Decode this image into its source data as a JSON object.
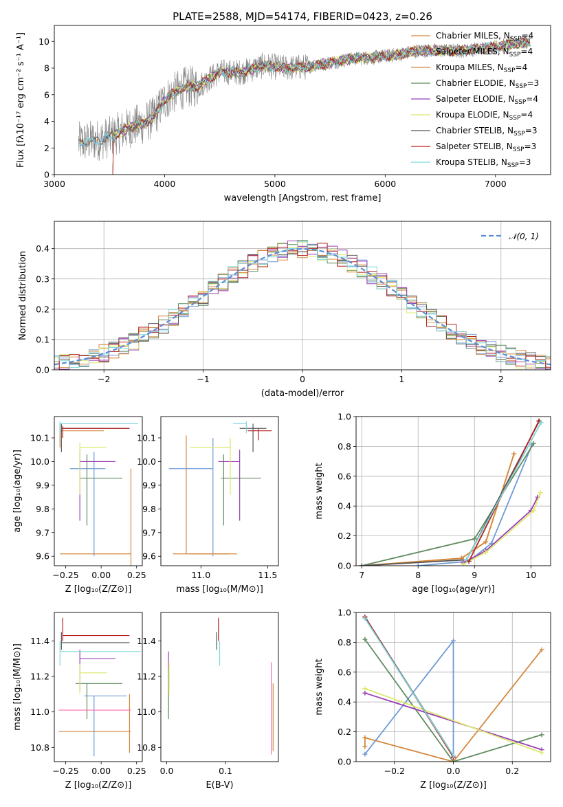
{
  "figure_title": "PLATE=2588, MJD=54174, FIBERID=0423, z=0.26",
  "series_colors": [
    "#d4873d",
    "#6f9ad6",
    "#d4873d",
    "#5e8b5e",
    "#9b3fb5",
    "#dde86a",
    "#555555",
    "#b52020",
    "#7fd6d9"
  ],
  "chart_data": [
    {
      "id": "spectrum",
      "type": "line",
      "xlabel": "wavelength [Angstrom, rest frame]",
      "ylabel": "Flux [fλ10⁻¹⁷ erg cm⁻² s⁻¹ A⁻¹]",
      "xlim": [
        3000,
        7500
      ],
      "ylim": [
        0,
        11.2
      ],
      "xticks": [
        "3000",
        "4000",
        "5000",
        "6000",
        "7000"
      ],
      "yticks": [
        "0",
        "2",
        "4",
        "6",
        "8",
        "10"
      ],
      "data_line_color": "#808080",
      "data_start": 3220,
      "data_end": 7320,
      "model_continuum": {
        "x": [
          3220,
          3300,
          3400,
          3500,
          3600,
          3700,
          3800,
          3900,
          4000,
          4100,
          4200,
          4300,
          4400,
          4500,
          4700,
          4900,
          5100,
          5300,
          5500,
          5700,
          5900,
          6100,
          6300,
          6500,
          6700,
          7000,
          7320
        ],
        "y": [
          2.4,
          2.5,
          2.6,
          2.8,
          3.2,
          3.6,
          3.8,
          4.3,
          5.6,
          6.2,
          6.6,
          6.6,
          7.2,
          7.7,
          7.7,
          8.2,
          8.0,
          8.1,
          8.4,
          8.7,
          8.8,
          9.0,
          9.3,
          9.3,
          9.3,
          9.6,
          10.0
        ]
      },
      "legend": [
        "Chabrier MILES, N_SSP=4",
        "Salpeter MILES, N_SSP=4",
        "Kroupa MILES, N_SSP=4",
        "Chabrier ELODIE, N_SSP=3",
        "Salpeter ELODIE, N_SSP=4",
        "Kroupa ELODIE, N_SSP=4",
        "Chabrier STELIB, N_SSP=3",
        "Salpeter STELIB, N_SSP=3",
        "Kroupa STELIB, N_SSP=3"
      ],
      "legend_placement": "upper-right"
    },
    {
      "id": "residuals",
      "type": "step",
      "xlabel": "(data-model)/error",
      "ylabel": "Normed distribution",
      "xlim": [
        -2.5,
        2.5
      ],
      "ylim": [
        0,
        0.49
      ],
      "xticks": [
        "−2",
        "−1",
        "0",
        "1",
        "2"
      ],
      "yticks": [
        "0.0",
        "0.1",
        "0.2",
        "0.3",
        "0.4"
      ],
      "grid": true,
      "legend": "𝒩(0, 1)",
      "legend_placement": "upper-right"
    },
    {
      "id": "age-vs-Z",
      "type": "errorbar",
      "xlabel": "Z [log₁₀(Z/Z⊙)]",
      "ylabel": "age  [log₁₀(age/yr)]",
      "xlim": [
        -0.33,
        0.29
      ],
      "ylim": [
        9.56,
        10.19
      ],
      "xticks": [
        "−0.25",
        "0.00",
        "0.25"
      ],
      "yticks": [
        "9.6",
        "9.7",
        "9.8",
        "9.9",
        "10.0",
        "10.1"
      ],
      "points": [
        {
          "x": -0.29,
          "y": 10.13,
          "xerr": [
            0.0,
            0.31
          ],
          "yerr": [
            0.07,
            0.03
          ],
          "color": "#d4873d"
        },
        {
          "x": -0.05,
          "y": 9.97,
          "xerr": [
            0.17,
            0.08
          ],
          "yerr": [
            0.37,
            0.07
          ],
          "color": "#6f9ad6"
        },
        {
          "x": 0.21,
          "y": 9.61,
          "xerr": [
            0.5,
            0.0
          ],
          "yerr": [
            0.05,
            0.36
          ],
          "color": "#d4873d"
        },
        {
          "x": -0.1,
          "y": 9.93,
          "xerr": [
            0.05,
            0.25
          ],
          "yerr": [
            0.2,
            0.1
          ],
          "color": "#5e8b5e"
        },
        {
          "x": -0.15,
          "y": 10.0,
          "xerr": [
            0.0,
            0.25
          ],
          "yerr": [
            0.25,
            0.05
          ],
          "color": "#9b3fb5"
        },
        {
          "x": -0.15,
          "y": 10.06,
          "xerr": [
            0.0,
            0.19
          ],
          "yerr": [
            0.2,
            0.02
          ],
          "color": "#dde86a"
        },
        {
          "x": -0.28,
          "y": 10.14,
          "xerr": [
            0.0,
            0.48
          ],
          "yerr": [
            0.1,
            0.02
          ],
          "color": "#555555"
        },
        {
          "x": -0.27,
          "y": 10.14,
          "xerr": [
            0.0,
            0.47
          ],
          "yerr": [
            0.04,
            0.01
          ],
          "color": "#b52020"
        },
        {
          "x": -0.29,
          "y": 10.16,
          "xerr": [
            0.0,
            0.55
          ],
          "yerr": [
            0.04,
            0.01
          ],
          "color": "#7fd6d9"
        }
      ]
    },
    {
      "id": "age-vs-mass",
      "type": "errorbar",
      "xlabel": "mass [log₁₀(M/M⊙)]",
      "ylabel": "",
      "xlim": [
        10.7,
        11.58
      ],
      "ylim": [
        9.56,
        10.19
      ],
      "xticks": [
        "11.0",
        "11.5"
      ],
      "yticks": [
        "9.6",
        "9.7",
        "9.8",
        "9.9",
        "10.0",
        "10.1"
      ],
      "points": [
        {
          "x": 10.89,
          "y": 9.61,
          "xerr": [
            0.1,
            0.32
          ],
          "yerr": [
            0.0,
            0.5
          ],
          "color": "#d4873d"
        },
        {
          "x": 11.09,
          "y": 9.97,
          "xerr": [
            0.33,
            0.0
          ],
          "yerr": [
            0.37,
            0.13
          ],
          "color": "#6f9ad6"
        },
        {
          "x": 11.17,
          "y": 9.93,
          "xerr": [
            0.02,
            0.28
          ],
          "yerr": [
            0.2,
            0.1
          ],
          "color": "#5e8b5e"
        },
        {
          "x": 11.29,
          "y": 10.0,
          "xerr": [
            0.16,
            0.0
          ],
          "yerr": [
            0.25,
            0.05
          ],
          "color": "#9b3fb5"
        },
        {
          "x": 11.22,
          "y": 10.06,
          "xerr": [
            0.3,
            0.0
          ],
          "yerr": [
            0.2,
            0.04
          ],
          "color": "#dde86a"
        },
        {
          "x": 11.39,
          "y": 10.14,
          "xerr": [
            0.1,
            0.1
          ],
          "yerr": [
            0.1,
            0.02
          ],
          "color": "#555555"
        },
        {
          "x": 11.43,
          "y": 10.13,
          "xerr": [
            0.08,
            0.1
          ],
          "yerr": [
            0.04,
            0.01
          ],
          "color": "#b52020"
        },
        {
          "x": 11.34,
          "y": 10.16,
          "xerr": [
            0.1,
            0.0
          ],
          "yerr": [
            0.04,
            0.01
          ],
          "color": "#7fd6d9"
        },
        {
          "x": 11.27,
          "y": 9.61,
          "xerr": [
            0.35,
            0.0
          ],
          "yerr": [
            0.0,
            0.0
          ],
          "color": "#d4873d"
        }
      ]
    },
    {
      "id": "mass-weight-vs-age",
      "type": "line",
      "xlabel": "age  [log₁₀(age/yr)]",
      "ylabel": "mass weight",
      "xlim": [
        6.9,
        10.35
      ],
      "ylim": [
        0,
        1.0
      ],
      "xticks": [
        "7",
        "8",
        "9",
        "10"
      ],
      "yticks": [
        "0.0",
        "0.2",
        "0.4",
        "0.6",
        "0.8",
        "1.0"
      ],
      "grid": true,
      "series": [
        {
          "x": [
            7.0,
            8.77,
            9.2,
            9.7
          ],
          "y": [
            0.0,
            0.05,
            0.16,
            0.75
          ],
          "color": "#d4873d"
        },
        {
          "x": [
            8.0,
            8.9,
            9.3,
            10.02
          ],
          "y": [
            0.0,
            0.03,
            0.15,
            0.81
          ],
          "color": "#6f9ad6"
        },
        {
          "x": [
            7.0,
            8.77,
            9.2,
            9.7
          ],
          "y": [
            0.0,
            0.05,
            0.16,
            0.75
          ],
          "color": "#d4873d"
        },
        {
          "x": [
            7.0,
            9.0,
            10.05
          ],
          "y": [
            0.0,
            0.18,
            0.82
          ],
          "color": "#5e8b5e"
        },
        {
          "x": [
            8.8,
            9.2,
            10.0,
            10.12
          ],
          "y": [
            0.02,
            0.1,
            0.37,
            0.46
          ],
          "color": "#9b3fb5"
        },
        {
          "x": [
            8.8,
            9.2,
            10.05,
            10.17
          ],
          "y": [
            0.01,
            0.09,
            0.37,
            0.49
          ],
          "color": "#dde86a"
        },
        {
          "x": [
            7.0,
            8.86,
            10.15
          ],
          "y": [
            0.0,
            0.04,
            0.97
          ],
          "color": "#555555"
        },
        {
          "x": [
            8.9,
            10.14
          ],
          "y": [
            0.03,
            0.97
          ],
          "color": "#b52020"
        },
        {
          "x": [
            8.86,
            10.18
          ],
          "y": [
            0.04,
            0.96
          ],
          "color": "#7fd6d9"
        }
      ]
    },
    {
      "id": "mass-vs-Z",
      "type": "errorbar",
      "xlabel": "Z [log₁₀(Z/Z⊙)]",
      "ylabel": "mass [log₁₀(M/M⊙)]",
      "xlim": [
        -0.33,
        0.29
      ],
      "ylim": [
        10.72,
        11.56
      ],
      "xticks": [
        "−0.25",
        "0.00",
        "0.25"
      ],
      "yticks": [
        "10.8",
        "11.0",
        "11.2",
        "11.4"
      ],
      "points": [
        {
          "x": -0.3,
          "y": 10.89,
          "xerr": [
            0.0,
            0.51
          ],
          "yerr": [
            0.0,
            0.0
          ],
          "color": "#d4873d"
        },
        {
          "x": 0.2,
          "y": 11.1,
          "xerr": [
            0.0,
            0.0
          ],
          "yerr": [
            0.33,
            0.0
          ],
          "color": "#d4873d"
        },
        {
          "x": -0.05,
          "y": 11.09,
          "xerr": [
            0.07,
            0.23
          ],
          "yerr": [
            0.34,
            0.0
          ],
          "color": "#6f9ad6"
        },
        {
          "x": -0.1,
          "y": 11.16,
          "xerr": [
            0.08,
            0.25
          ],
          "yerr": [
            0.2,
            0.0
          ],
          "color": "#5e8b5e"
        },
        {
          "x": -0.15,
          "y": 11.3,
          "xerr": [
            0.0,
            0.25
          ],
          "yerr": [
            0.18,
            0.05
          ],
          "color": "#9b3fb5"
        },
        {
          "x": -0.15,
          "y": 11.22,
          "xerr": [
            0.0,
            0.19
          ],
          "yerr": [
            0.12,
            0.05
          ],
          "color": "#dde86a"
        },
        {
          "x": -0.28,
          "y": 11.39,
          "xerr": [
            0.0,
            0.48
          ],
          "yerr": [
            0.04,
            0.06
          ],
          "color": "#555555"
        },
        {
          "x": -0.27,
          "y": 11.43,
          "xerr": [
            0.0,
            0.47
          ],
          "yerr": [
            0.03,
            0.1
          ],
          "color": "#b52020"
        },
        {
          "x": -0.29,
          "y": 11.34,
          "xerr": [
            0.0,
            0.57
          ],
          "yerr": [
            0.08,
            0.06
          ],
          "color": "#7fd6d9"
        },
        {
          "x": -0.3,
          "y": 11.01,
          "xerr": [
            0.0,
            0.51
          ],
          "yerr": [
            0.0,
            0.0
          ],
          "color": "#ff69b4"
        }
      ]
    },
    {
      "id": "mass-vs-ebv",
      "type": "errorbar",
      "xlabel": "E(B-V)",
      "ylabel": "",
      "xlim": [
        -0.01,
        0.19
      ],
      "ylim": [
        10.72,
        11.56
      ],
      "xticks": [
        "0.0",
        "0.1"
      ],
      "yticks": [
        "10.8",
        "11.0",
        "11.2",
        "11.4"
      ],
      "points": [
        {
          "x": 0.003,
          "y": 11.22,
          "xerr": [
            0.0,
            0.0
          ],
          "yerr": [
            0.12,
            0.12
          ],
          "color": "#9b3fb5"
        },
        {
          "x": 0.003,
          "y": 11.16,
          "xerr": [
            0.0,
            0.0
          ],
          "yerr": [
            0.2,
            0.08
          ],
          "color": "#5e8b5e"
        },
        {
          "x": 0.004,
          "y": 11.2,
          "xerr": [
            0.0,
            0.0
          ],
          "yerr": [
            0.1,
            0.08
          ],
          "color": "#dde86a"
        },
        {
          "x": 0.085,
          "y": 11.39,
          "xerr": [
            0.0,
            0.0
          ],
          "yerr": [
            0.04,
            0.06
          ],
          "color": "#555555"
        },
        {
          "x": 0.088,
          "y": 11.43,
          "xerr": [
            0.0,
            0.0
          ],
          "yerr": [
            0.03,
            0.1
          ],
          "color": "#b52020"
        },
        {
          "x": 0.09,
          "y": 11.34,
          "xerr": [
            0.0,
            0.0
          ],
          "yerr": [
            0.08,
            0.06
          ],
          "color": "#7fd6d9"
        },
        {
          "x": 0.178,
          "y": 11.01,
          "xerr": [
            0.0,
            0.0
          ],
          "yerr": [
            0.25,
            0.27
          ],
          "color": "#ff69b4"
        },
        {
          "x": 0.181,
          "y": 10.96,
          "xerr": [
            0.0,
            0.0
          ],
          "yerr": [
            0.18,
            0.2
          ],
          "color": "#d4873d"
        }
      ]
    },
    {
      "id": "mass-weight-vs-Z",
      "type": "line",
      "xlabel": "Z [log₁₀(Z/Z⊙)]",
      "ylabel": "mass weight",
      "xlim": [
        -0.33,
        0.33
      ],
      "ylim": [
        0,
        1.0
      ],
      "xticks": [
        "−0.2",
        "0.0",
        "0.2"
      ],
      "yticks": [
        "0.0",
        "0.2",
        "0.4",
        "0.6",
        "0.8",
        "1.0"
      ],
      "grid": true,
      "series": [
        {
          "x": [
            -0.3,
            0.0,
            0.3
          ],
          "y": [
            0.16,
            0.0,
            0.75
          ],
          "color": "#d4873d"
        },
        {
          "x": [
            -0.3,
            0.0,
            0.0
          ],
          "y": [
            0.05,
            0.81,
            0.03
          ],
          "color": "#6f9ad6"
        },
        {
          "x": [
            -0.3,
            0.0,
            0.3
          ],
          "y": [
            0.82,
            0.0,
            0.18
          ],
          "color": "#5e8b5e"
        },
        {
          "x": [
            -0.3,
            0.3
          ],
          "y": [
            0.46,
            0.08
          ],
          "color": "#9b3fb5"
        },
        {
          "x": [
            -0.3,
            0.3
          ],
          "y": [
            0.49,
            0.06
          ],
          "color": "#dde86a"
        },
        {
          "x": [
            -0.3,
            0.0
          ],
          "y": [
            0.97,
            0.04
          ],
          "color": "#555555"
        },
        {
          "x": [
            -0.3,
            0.0
          ],
          "y": [
            0.97,
            0.03
          ],
          "color": "#b52020"
        },
        {
          "x": [
            -0.3,
            0.0
          ],
          "y": [
            0.96,
            0.04
          ],
          "color": "#7fd6d9"
        },
        {
          "x": [
            -0.3,
            -0.3
          ],
          "y": [
            0.1,
            0.16
          ],
          "color": "#d4873d"
        }
      ]
    }
  ]
}
